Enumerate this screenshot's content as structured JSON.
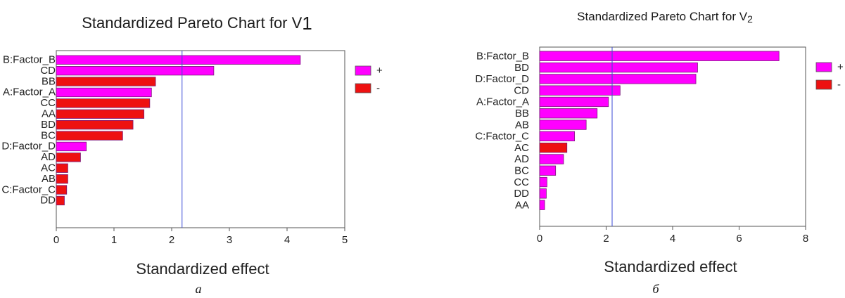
{
  "chart_data": [
    {
      "type": "bar",
      "orientation": "horizontal",
      "title": "Standardized Pareto Chart for V",
      "title_suffix": "1",
      "xlabel": "Standardized effect",
      "xlim": [
        0,
        5
      ],
      "xticks": [
        "0",
        "1",
        "2",
        "3",
        "4",
        "5"
      ],
      "reference_line": 2.18,
      "caption": "а",
      "legend": [
        {
          "sign": "+",
          "color": "#ff00ff"
        },
        {
          "sign": "-",
          "color": "#ee1111"
        }
      ],
      "legend_position": "right",
      "grid": false,
      "categories": [
        "B:Factor_B",
        "CD",
        "BB",
        "A:Factor_A",
        "CC",
        "AA",
        "BD",
        "BC",
        "D:Factor_D",
        "AD",
        "AC",
        "AB",
        "C:Factor_C",
        "DD"
      ],
      "values": [
        4.23,
        2.73,
        1.72,
        1.65,
        1.62,
        1.52,
        1.33,
        1.15,
        0.52,
        0.42,
        0.2,
        0.2,
        0.18,
        0.14
      ],
      "signs": [
        "+",
        "+",
        "-",
        "+",
        "-",
        "-",
        "-",
        "-",
        "+",
        "-",
        "-",
        "-",
        "-",
        "-"
      ]
    },
    {
      "type": "bar",
      "orientation": "horizontal",
      "title": "Standardized Pareto Chart for V",
      "title_suffix": "2",
      "xlabel": "Standardized effect",
      "xlim": [
        0,
        8
      ],
      "xticks": [
        "0",
        "2",
        "4",
        "6",
        "8"
      ],
      "reference_line": 2.18,
      "caption": "б",
      "legend": [
        {
          "sign": "+",
          "color": "#ff00ff"
        },
        {
          "sign": "-",
          "color": "#ee1111"
        }
      ],
      "legend_position": "right",
      "grid": false,
      "categories": [
        "B:Factor_B",
        "BD",
        "D:Factor_D",
        "CD",
        "A:Factor_A",
        "BB",
        "AB",
        "C:Factor_C",
        "AC",
        "AD",
        "BC",
        "CC",
        "DD",
        "AA"
      ],
      "values": [
        7.2,
        4.75,
        4.7,
        2.42,
        2.07,
        1.73,
        1.4,
        1.05,
        0.82,
        0.72,
        0.48,
        0.22,
        0.2,
        0.15
      ],
      "signs": [
        "+",
        "+",
        "+",
        "+",
        "+",
        "+",
        "+",
        "+",
        "-",
        "+",
        "+",
        "+",
        "+",
        "+"
      ]
    }
  ]
}
